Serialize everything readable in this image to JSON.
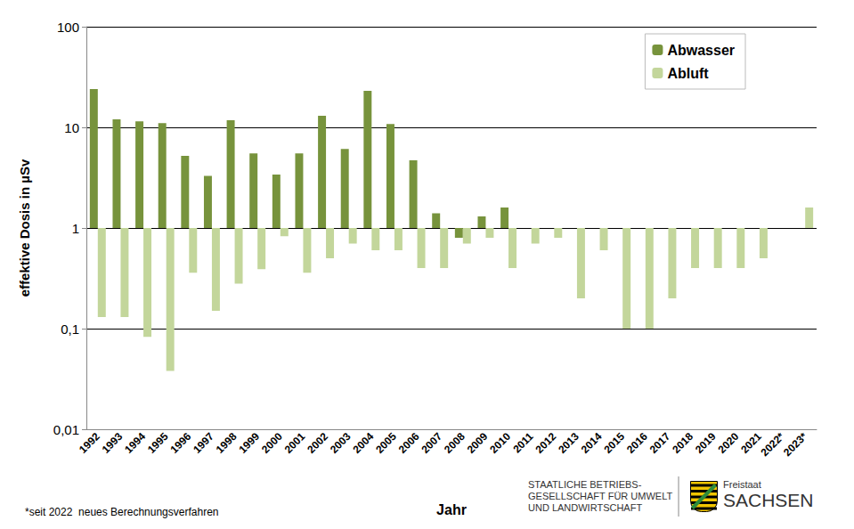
{
  "chart_data": {
    "type": "bar",
    "categories": [
      "1992",
      "1993",
      "1994",
      "1995",
      "1996",
      "1997",
      "1998",
      "1999",
      "2000",
      "2001",
      "2002",
      "2003",
      "2004",
      "2005",
      "2006",
      "2007",
      "2008",
      "2009",
      "2010",
      "2011",
      "2012",
      "2013",
      "2014",
      "2015",
      "2016",
      "2017",
      "2018",
      "2019",
      "2020",
      "2021",
      "2022*",
      "2023*"
    ],
    "series": [
      {
        "name": "Abwasser",
        "color": "#77933c",
        "values": [
          24,
          12,
          11.5,
          11,
          5.2,
          3.3,
          11.8,
          5.5,
          3.4,
          5.5,
          13,
          6.1,
          23,
          10.8,
          4.7,
          1.4,
          0.8,
          1.3,
          1.6,
          null,
          null,
          null,
          null,
          null,
          null,
          null,
          null,
          null,
          null,
          null,
          null,
          null
        ]
      },
      {
        "name": "Abluft",
        "color": "#c3d69b",
        "values": [
          0.13,
          0.13,
          0.083,
          0.038,
          0.36,
          0.15,
          0.28,
          0.39,
          0.83,
          0.36,
          0.5,
          0.7,
          0.6,
          0.6,
          0.4,
          0.4,
          0.7,
          0.8,
          0.4,
          0.7,
          0.8,
          0.2,
          0.6,
          0.1,
          0.1,
          0.2,
          0.4,
          0.4,
          0.4,
          0.5,
          1.0,
          1.6
        ]
      }
    ],
    "x_label": "Jahr",
    "y_label": "effektive Dosis in µSv",
    "ylim": [
      0.01,
      100
    ],
    "yticks": [
      {
        "value": 0.01,
        "label": "0,01"
      },
      {
        "value": 0.1,
        "label": "0,1"
      },
      1,
      10,
      100
    ],
    "log": "y",
    "grid": true,
    "legend": "top-right",
    "data_labels": false,
    "annotations": {
      "footnote": "*seit 2022  neues Berechnungsverfahren",
      "organisation": [
        "STAATLICHE BETRIEBS-",
        "GESELLSCHAFT FÜR UMWELT",
        "UND LANDWIRTSCHAFT"
      ],
      "state_small": "Freistaat",
      "state": "SACHSEN"
    }
  }
}
